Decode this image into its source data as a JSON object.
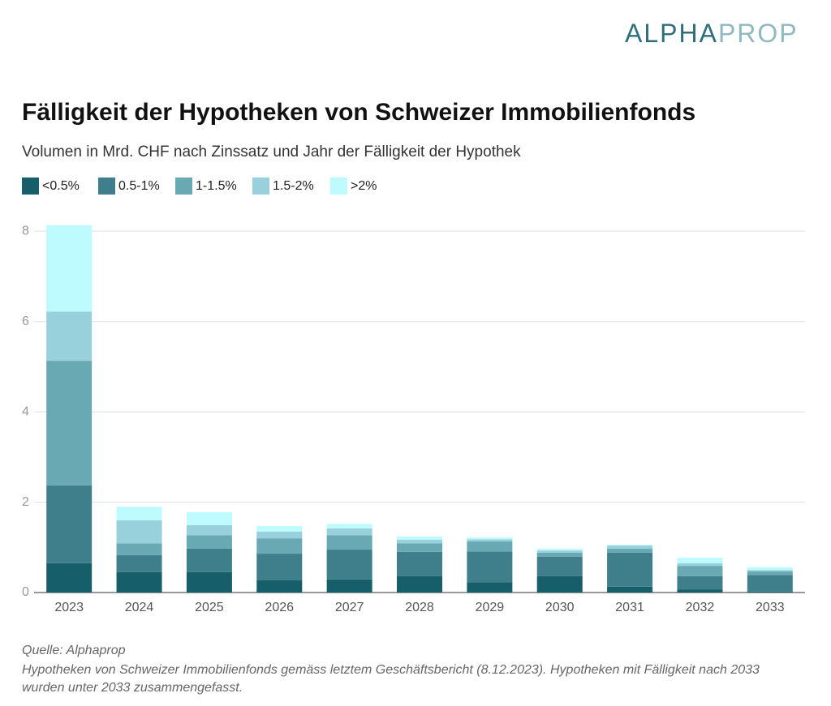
{
  "logo": {
    "part1": "ALPHA",
    "part2": "PROP"
  },
  "chart_data": {
    "type": "stacked_bar",
    "title": "Fälligkeit der Hypotheken von Schweizer Immobilienfonds",
    "subtitle": "Volumen in Mrd. CHF nach Zinssatz und Jahr der Fälligkeit der Hypothek",
    "categories": [
      "2023",
      "2024",
      "2025",
      "2026",
      "2027",
      "2028",
      "2029",
      "2030",
      "2031",
      "2032",
      "2033"
    ],
    "series": [
      {
        "name": "<0.5%",
        "color": "#155e6a",
        "values": [
          0.65,
          0.45,
          0.45,
          0.27,
          0.29,
          0.36,
          0.23,
          0.36,
          0.13,
          0.07,
          0.02
        ]
      },
      {
        "name": "0.5-1%",
        "color": "#3f7f8c",
        "values": [
          1.72,
          0.38,
          0.52,
          0.59,
          0.66,
          0.54,
          0.68,
          0.43,
          0.75,
          0.29,
          0.37
        ]
      },
      {
        "name": "1-1.5%",
        "color": "#68a9b4",
        "values": [
          2.76,
          0.26,
          0.3,
          0.34,
          0.32,
          0.19,
          0.22,
          0.09,
          0.09,
          0.23,
          0.08
        ]
      },
      {
        "name": "1.5-2%",
        "color": "#98d0db",
        "values": [
          1.09,
          0.51,
          0.22,
          0.15,
          0.15,
          0.08,
          0.05,
          0.05,
          0.07,
          0.06,
          0.03
        ]
      },
      {
        "name": ">2%",
        "color": "#bdfbff",
        "values": [
          1.91,
          0.3,
          0.29,
          0.12,
          0.1,
          0.07,
          0.04,
          0.04,
          0.02,
          0.12,
          0.06
        ]
      }
    ],
    "ylim": [
      0,
      8.2
    ],
    "yticks": [
      0,
      2,
      4,
      6,
      8
    ],
    "grid": true,
    "source": "Quelle: Alphaprop",
    "note": "Hypotheken von Schweizer Immobilienfonds gemäss letztem Geschäftsbericht (8.12.2023). Hypotheken mit Fälligkeit nach 2033 wurden unter 2033 zusammengefasst."
  }
}
